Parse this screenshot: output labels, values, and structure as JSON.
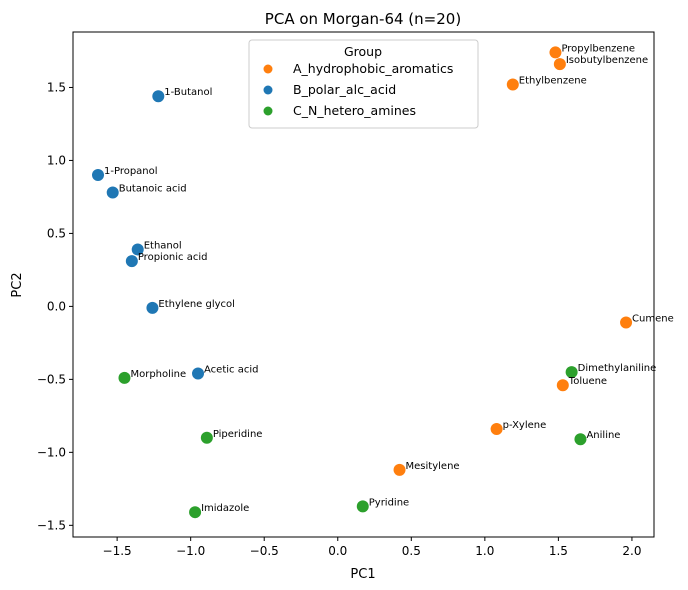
{
  "chart_data": {
    "type": "scatter",
    "title": "PCA on Morgan-64 (n=20)",
    "xlabel": "PC1",
    "ylabel": "PC2",
    "xlim": [
      -1.8,
      2.15
    ],
    "ylim": [
      -1.58,
      1.88
    ],
    "xticks": [
      -1.5,
      -1.0,
      -0.5,
      0.0,
      0.5,
      1.0,
      1.5,
      2.0
    ],
    "yticks": [
      -1.5,
      -1.0,
      -0.5,
      0.0,
      0.5,
      1.0,
      1.5
    ],
    "grid": false,
    "legend": {
      "title": "Group",
      "position": "top-center"
    },
    "series": [
      {
        "name": "A_hydrophobic_aromatics",
        "color": "#ff7f0e",
        "points": [
          {
            "label": "Propylbenzene",
            "x": 1.48,
            "y": 1.74
          },
          {
            "label": "Isobutylbenzene",
            "x": 1.51,
            "y": 1.66
          },
          {
            "label": "Ethylbenzene",
            "x": 1.19,
            "y": 1.52
          },
          {
            "label": "Cumene",
            "x": 1.96,
            "y": -0.11
          },
          {
            "label": "Toluene",
            "x": 1.53,
            "y": -0.54
          },
          {
            "label": "p-Xylene",
            "x": 1.08,
            "y": -0.84
          },
          {
            "label": "Mesitylene",
            "x": 0.42,
            "y": -1.12
          }
        ]
      },
      {
        "name": "B_polar_alc_acid",
        "color": "#1f77b4",
        "points": [
          {
            "label": "1-Butanol",
            "x": -1.22,
            "y": 1.44
          },
          {
            "label": "1-Propanol",
            "x": -1.63,
            "y": 0.9
          },
          {
            "label": "Butanoic acid",
            "x": -1.53,
            "y": 0.78
          },
          {
            "label": "Ethanol",
            "x": -1.36,
            "y": 0.39
          },
          {
            "label": "Propionic acid",
            "x": -1.4,
            "y": 0.31
          },
          {
            "label": "Ethylene glycol",
            "x": -1.26,
            "y": -0.01
          },
          {
            "label": "Acetic acid",
            "x": -0.95,
            "y": -0.46
          }
        ]
      },
      {
        "name": "C_N_hetero_amines",
        "color": "#2ca02c",
        "points": [
          {
            "label": "Dimethylaniline",
            "x": 1.59,
            "y": -0.45
          },
          {
            "label": "Aniline",
            "x": 1.65,
            "y": -0.91
          },
          {
            "label": "Morpholine",
            "x": -1.45,
            "y": -0.49
          },
          {
            "label": "Piperidine",
            "x": -0.89,
            "y": -0.9
          },
          {
            "label": "Imidazole",
            "x": -0.97,
            "y": -1.41
          },
          {
            "label": "Pyridine",
            "x": 0.17,
            "y": -1.37
          }
        ]
      }
    ]
  }
}
